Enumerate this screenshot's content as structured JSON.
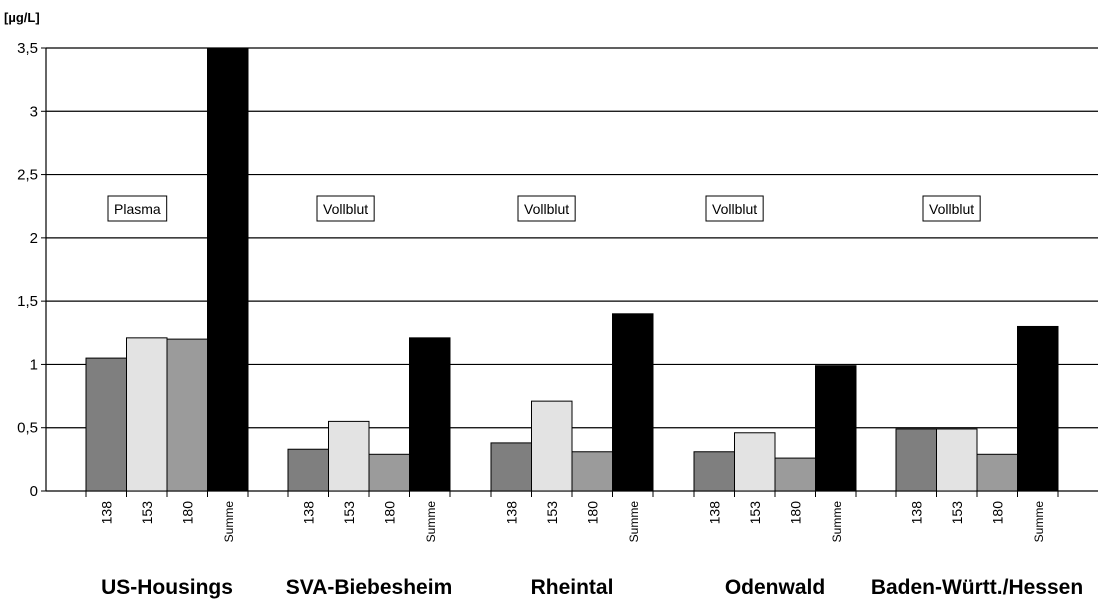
{
  "chart_data": {
    "type": "bar",
    "unit_label": "[µg/L]",
    "ylim": [
      0,
      3.5
    ],
    "yticks": [
      0,
      0.5,
      1,
      1.5,
      2,
      2.5,
      3,
      3.5
    ],
    "ytick_labels": [
      "0",
      "0,5",
      "1",
      "1,5",
      "2",
      "2,5",
      "3",
      "3,5"
    ],
    "grid": true,
    "legend": "none",
    "series_labels": [
      "138",
      "153",
      "180",
      "Summe"
    ],
    "series_colors": [
      "#7f7f7f",
      "#e3e3e3",
      "#9b9b9b",
      "#000000"
    ],
    "groups": [
      {
        "name": "US-Housings",
        "annotation": "Plasma",
        "values": [
          1.05,
          1.21,
          1.2,
          3.5
        ]
      },
      {
        "name": "SVA-Biebesheim",
        "annotation": "Vollblut",
        "values": [
          0.33,
          0.55,
          0.29,
          1.21
        ]
      },
      {
        "name": "Rheintal",
        "annotation": "Vollblut",
        "values": [
          0.38,
          0.71,
          0.31,
          1.4
        ]
      },
      {
        "name": "Odenwald",
        "annotation": "Vollblut",
        "values": [
          0.31,
          0.46,
          0.26,
          0.99
        ]
      },
      {
        "name": "Baden-Württ./Hessen",
        "annotation": "Vollblut",
        "values": [
          0.49,
          0.49,
          0.29,
          1.3
        ]
      }
    ]
  }
}
